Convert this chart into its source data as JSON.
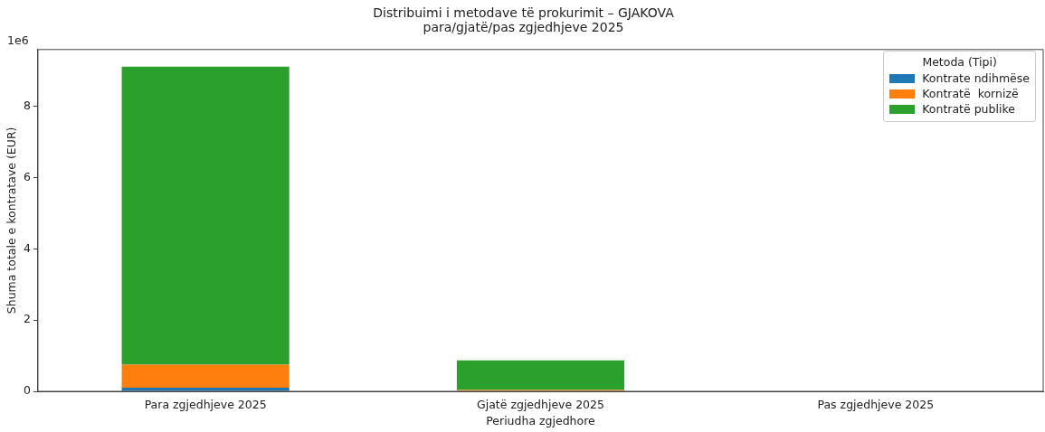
{
  "chart_data": {
    "type": "bar",
    "title": "Distribuimi i metodave të prokurimit – GJAKOVA\npara/gjatë/pas zgjedhjeve 2025",
    "xlabel": "Periudha zgjedhore",
    "ylabel": "Shuma totale e kontratave (EUR)",
    "legend_title": "Metoda (Tipi)",
    "categories": [
      "Para zgjedhjeve 2025",
      "Gjatë zgjedhjeve 2025",
      "Pas zgjedhjeve 2025"
    ],
    "stacked": true,
    "series": [
      {
        "name": "Kontrate ndihmëse",
        "color": "#1f77b4",
        "values": [
          0.1,
          0,
          0
        ]
      },
      {
        "name": "Kontratë  kornizë",
        "color": "#ff7f0e",
        "values": [
          0.65,
          0.04,
          0
        ]
      },
      {
        "name": "Kontratë publike",
        "color": "#2ca02c",
        "values": [
          8.37,
          0.83,
          0
        ]
      }
    ],
    "ylim": [
      0,
      9.6
    ],
    "yticks": [
      0,
      2,
      4,
      6,
      8
    ],
    "annotations": [
      "1e6"
    ],
    "grid": false,
    "legend": "top right"
  }
}
